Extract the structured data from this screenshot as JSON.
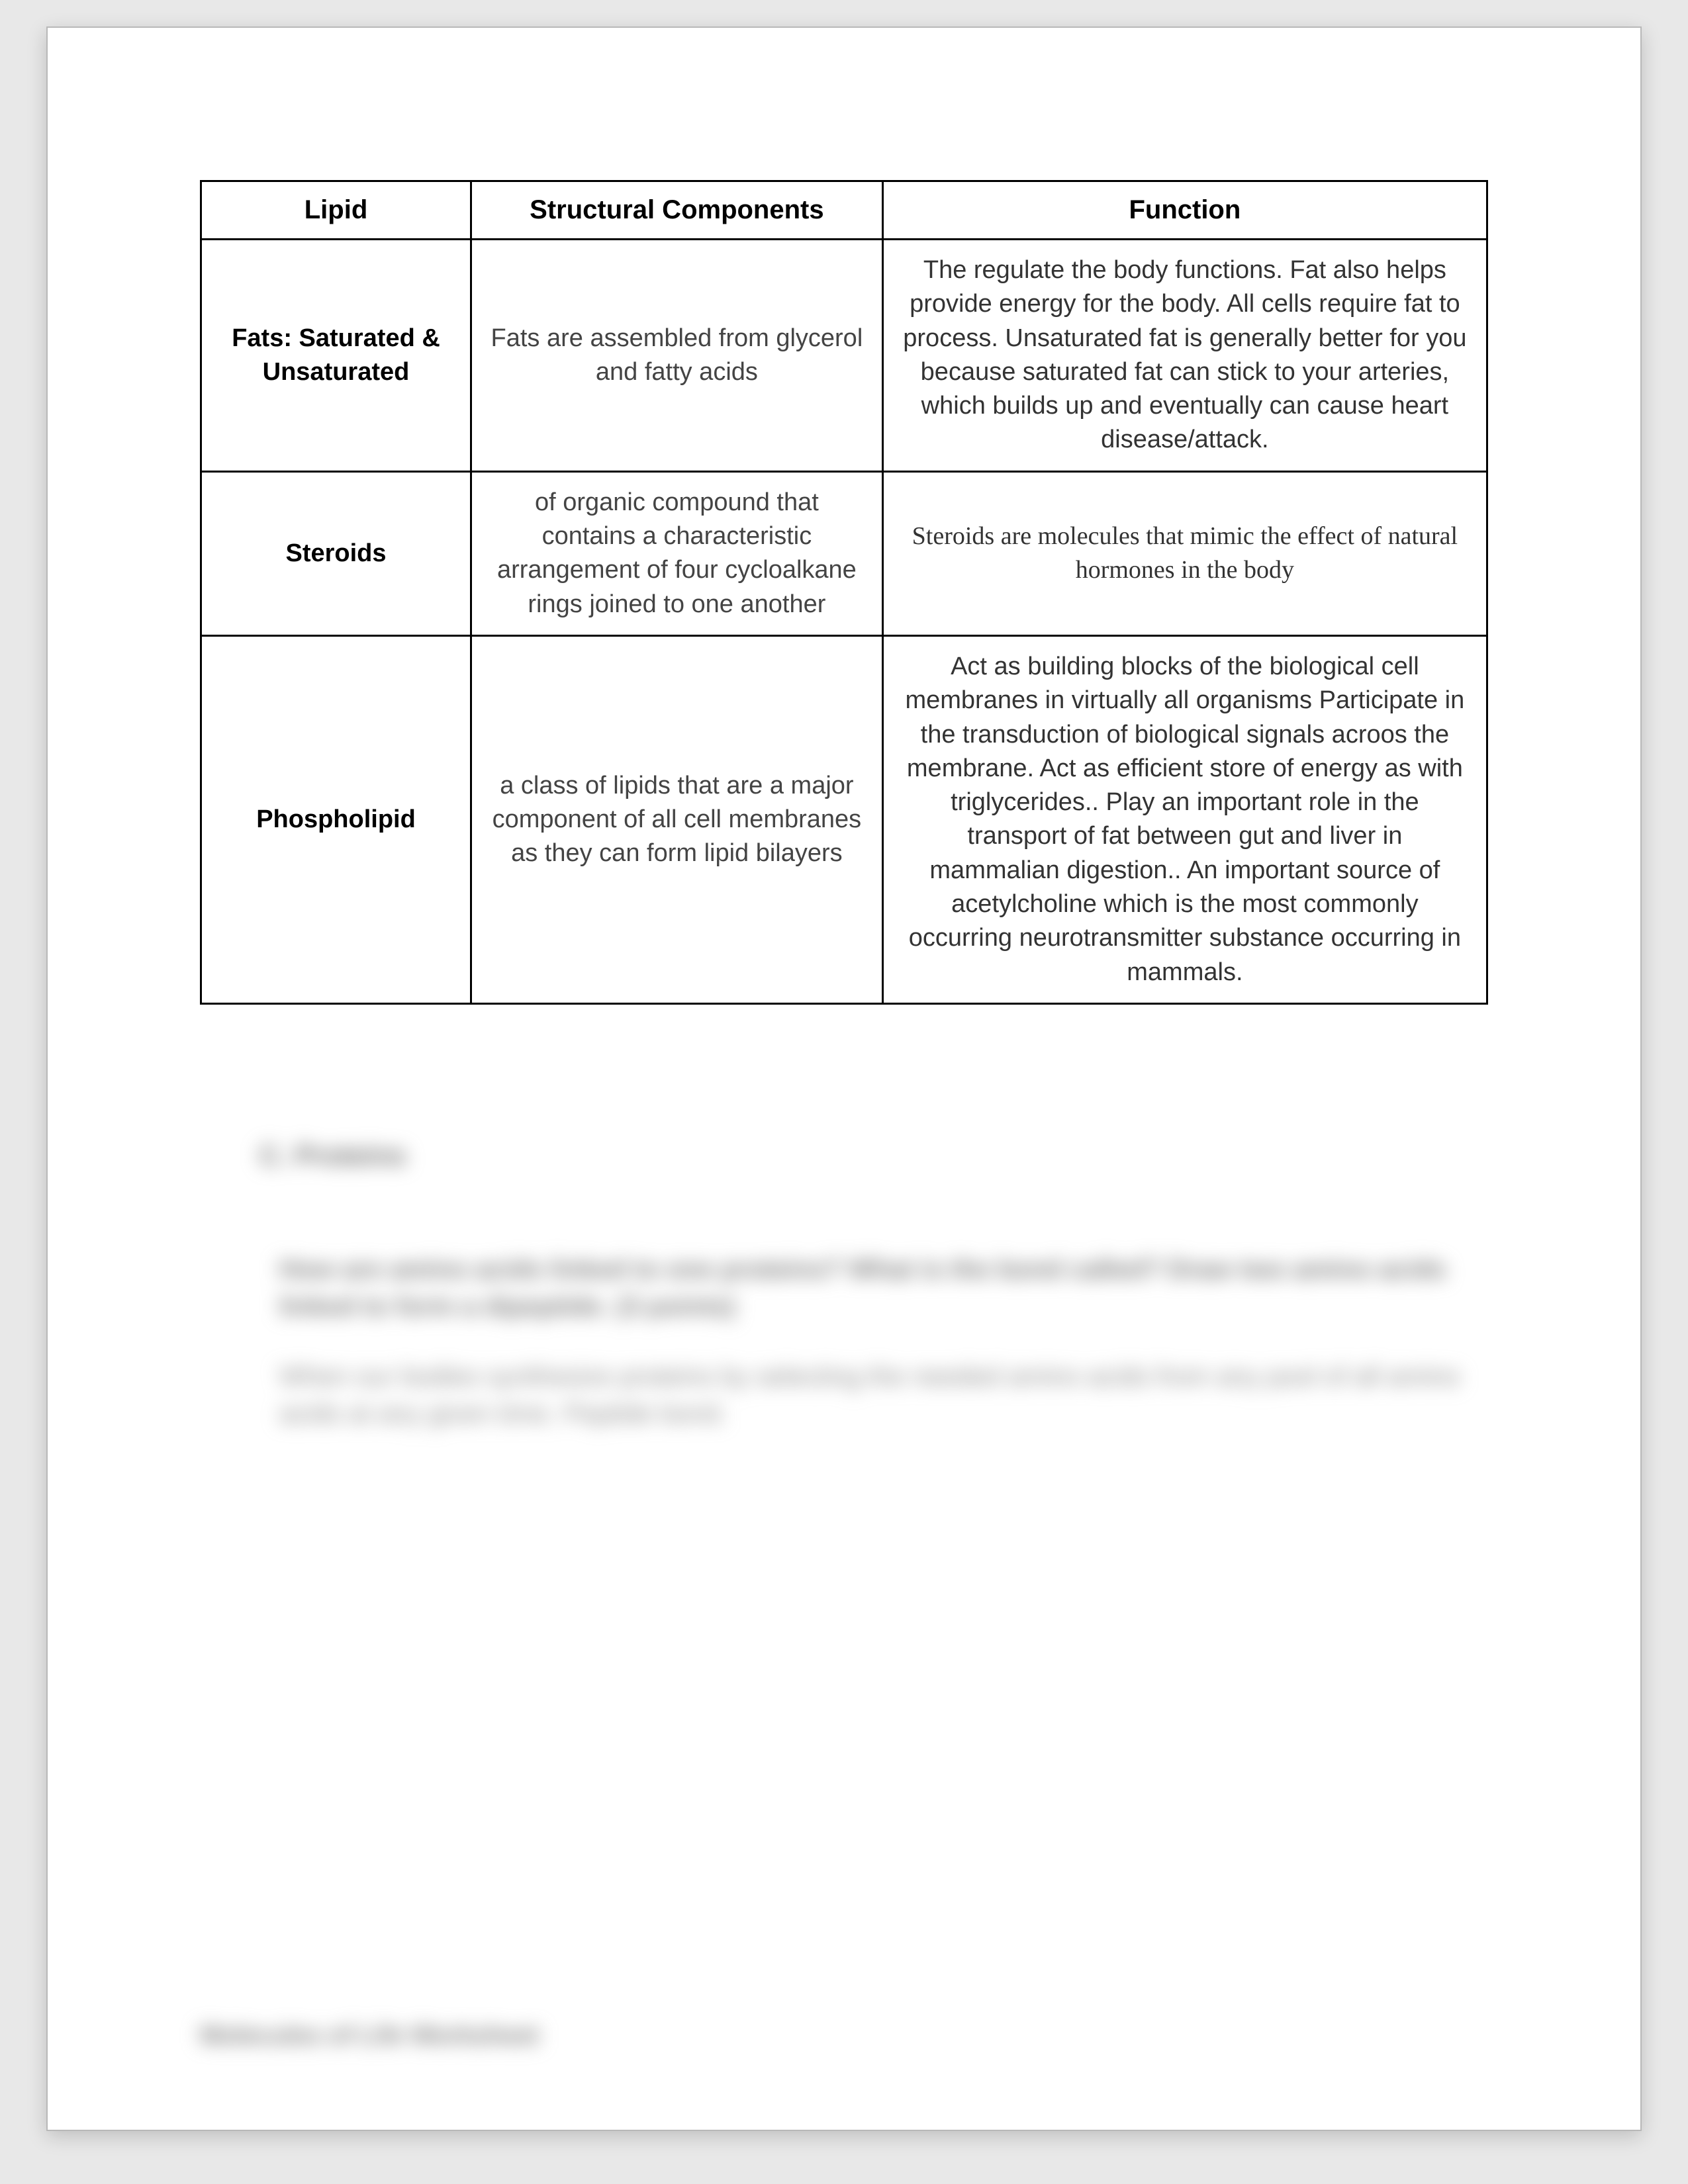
{
  "table": {
    "headers": {
      "c1": "Lipid",
      "c2": "Structural Components",
      "c3": "Function"
    },
    "rows": [
      {
        "lipid": "Fats: Saturated & Unsaturated",
        "struct": "Fats are assembled from glycerol and fatty acids",
        "func": "The regulate the body functions. Fat also helps provide energy for the body. All cells require fat to process. Unsaturated fat is generally better for you because saturated fat can stick to your arteries, which builds up and eventually can cause heart disease/attack."
      },
      {
        "lipid": "Steroids",
        "struct": "of organic compound that contains a characteristic arrangement of four cycloalkane rings joined to one another",
        "func": "Steroids are molecules that mimic the effect of natural hormones in the body",
        "func_serif": true
      },
      {
        "lipid": "Phospholipid",
        "struct": "a class of lipids that are a major component of all cell membranes as they can form lipid bilayers",
        "func": "Act as building blocks of the biological cell membranes in virtually all organisms Participate in the transduction of biological signals acroos the membrane. Act as efficient store of energy as with triglycerides.. Play an important role in the transport of fat between gut and liver in mammalian digestion.. An important source of acetylcholine which is the most commonly occurring neurotransmitter substance occurring in mammals."
      }
    ]
  },
  "blurred": {
    "heading": "C. Proteins",
    "question": "How are amino acids linked to one proteins? What is the bond called? Draw two amino acids linked to form a dipeptide. (3 points)",
    "answer": "When our bodies synthesize proteins by selecting the needed amino acids from any pool of all amino acids at any given time. Peptide bond.",
    "footer": "Molecules of Life Worksheet"
  },
  "colors": {
    "page_bg": "#ffffff",
    "outer_bg": "#e8e8e8",
    "border": "#000000",
    "text": "#000000",
    "struct_text": "#444444",
    "blur_text": "#7d7d7d"
  }
}
